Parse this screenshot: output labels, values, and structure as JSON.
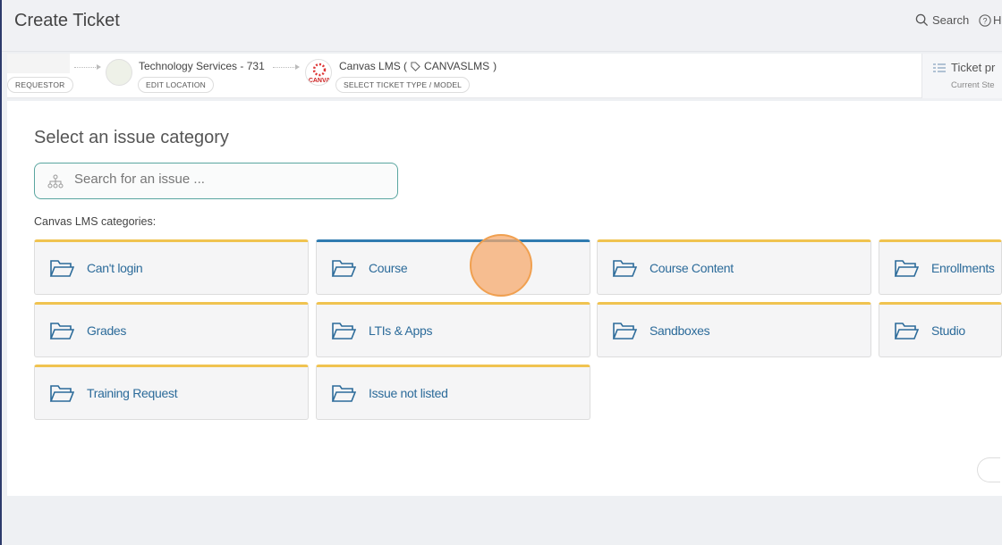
{
  "header": {
    "title": "Create Ticket",
    "search_label": "Search",
    "help_label": "H"
  },
  "breadcrumb": {
    "requestor_button": "REQUESTOR",
    "location_name": "Technology Services - 731",
    "location_button": "EDIT LOCATION",
    "type_name_prefix": "Canvas LMS (",
    "type_tag": "CANVASLMS",
    "type_name_suffix": ")",
    "type_button": "SELECT TICKET TYPE / MODEL",
    "canvas_logo_text": "CANVA"
  },
  "progress": {
    "title": "Ticket pr",
    "subtitle": "Current Ste"
  },
  "main": {
    "heading": "Select an issue category",
    "search_placeholder": "Search for an issue ...",
    "categories_label": "Canvas LMS categories:",
    "categories": [
      "Can't login",
      "Course",
      "Course Content",
      "Enrollments",
      "Grades",
      "LTIs & Apps",
      "Sandboxes",
      "Studio",
      "Training Request",
      "Issue not listed"
    ],
    "active_category": "Course"
  },
  "colors": {
    "accent_yellow": "#f0c350",
    "accent_blue": "#2f7bb0",
    "link": "#2c6b9a",
    "search_border": "#5aa6a0"
  }
}
